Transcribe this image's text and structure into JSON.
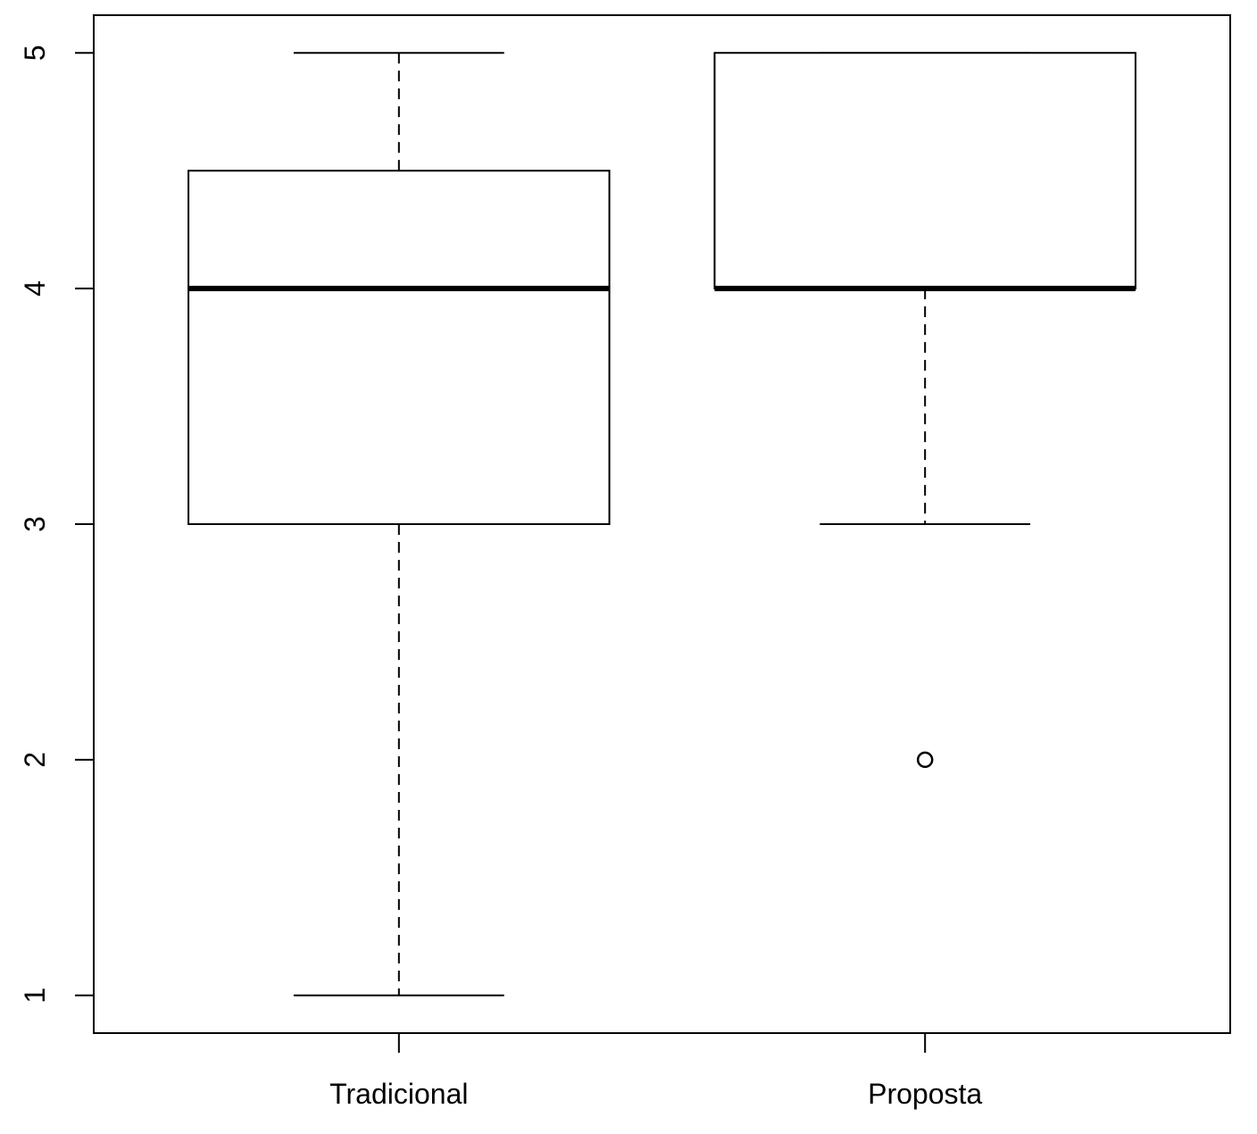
{
  "chart_data": {
    "type": "boxplot",
    "title": "",
    "xlabel": "",
    "ylabel": "",
    "categories": [
      "Tradicional",
      "Proposta"
    ],
    "boxes": [
      {
        "category": "Tradicional",
        "whisker_low": 1,
        "q1": 3,
        "median": 4,
        "q3": 4.5,
        "whisker_high": 5,
        "outliers": []
      },
      {
        "category": "Proposta",
        "whisker_low": 3,
        "q1": 4,
        "median": 4,
        "q3": 5,
        "whisker_high": 5,
        "outliers": [
          2
        ]
      }
    ],
    "yticks": [
      1,
      2,
      3,
      4,
      5
    ],
    "ylim": [
      0.84,
      5.16
    ],
    "grid": false,
    "colors": {
      "stroke": "#000000",
      "fill": "#ffffff"
    }
  }
}
